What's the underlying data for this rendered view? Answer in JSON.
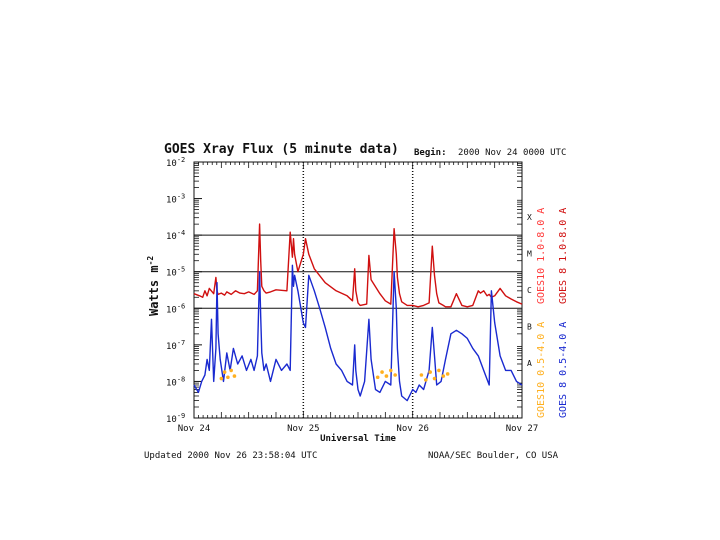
{
  "chart_data": {
    "type": "line",
    "title": "GOES Xray Flux (5 minute data)",
    "begin_label": "Begin:",
    "begin_value": "2000 Nov 24 0000 UTC",
    "ylabel": "Watts m",
    "ylabel_exp": "-2",
    "xlabel": "Universal Time",
    "y_scale": "log",
    "ylim": [
      1e-09,
      0.01
    ],
    "xlim": [
      0,
      3
    ],
    "y_ticks": [
      {
        "base": "10",
        "exp": "-2",
        "value": 0.01
      },
      {
        "base": "10",
        "exp": "-3",
        "value": 0.001
      },
      {
        "base": "10",
        "exp": "-4",
        "value": 0.0001
      },
      {
        "base": "10",
        "exp": "-5",
        "value": 1e-05
      },
      {
        "base": "10",
        "exp": "-6",
        "value": 1e-06
      },
      {
        "base": "10",
        "exp": "-7",
        "value": 1e-07
      },
      {
        "base": "10",
        "exp": "-8",
        "value": 1e-08
      },
      {
        "base": "10",
        "exp": "-9",
        "value": 1e-09
      }
    ],
    "x_ticks": [
      {
        "label": "Nov 24",
        "value": 0
      },
      {
        "label": "Nov 25",
        "value": 1
      },
      {
        "label": "Nov 26",
        "value": 2
      },
      {
        "label": "Nov 27",
        "value": 3
      }
    ],
    "flare_classes": [
      {
        "label": "X",
        "value": 0.0001
      },
      {
        "label": "M",
        "value": 1e-05
      },
      {
        "label": "C",
        "value": 1e-06
      },
      {
        "label": "B",
        "value": 1e-07
      },
      {
        "label": "A",
        "value": 1e-08
      }
    ],
    "reference_lines": [
      0.0001,
      1e-05,
      1e-06
    ],
    "legend": [
      {
        "name": "GOES10 1.0-8.0 A",
        "color": "#ff3b3b"
      },
      {
        "name": "GOES 8 1.0-8.0 A",
        "color": "#d01010"
      },
      {
        "name": "GOES10 0.5-4.0 A",
        "color": "#ffb020"
      },
      {
        "name": "GOES 8 0.5-4.0 A",
        "color": "#1a2ad0"
      }
    ],
    "series": [
      {
        "name": "GOES 8 1.0-8.0 A",
        "color": "#d01010",
        "x": [
          0,
          0.05,
          0.08,
          0.1,
          0.12,
          0.14,
          0.18,
          0.2,
          0.21,
          0.22,
          0.25,
          0.28,
          0.3,
          0.34,
          0.38,
          0.42,
          0.46,
          0.5,
          0.55,
          0.58,
          0.6,
          0.61,
          0.62,
          0.64,
          0.66,
          0.7,
          0.75,
          0.85,
          0.88,
          0.9,
          0.91,
          0.92,
          0.95,
          1.0,
          1.02,
          1.05,
          1.1,
          1.2,
          1.3,
          1.4,
          1.45,
          1.47,
          1.48,
          1.5,
          1.52,
          1.58,
          1.6,
          1.62,
          1.7,
          1.75,
          1.8,
          1.83,
          1.85,
          1.86,
          1.88,
          1.9,
          1.95,
          2.0,
          2.05,
          2.1,
          2.15,
          2.18,
          2.2,
          2.22,
          2.24,
          2.28,
          2.3,
          2.35,
          2.4,
          2.45,
          2.5,
          2.55,
          2.6,
          2.62,
          2.65,
          2.68,
          2.7,
          2.72,
          2.75,
          2.8,
          2.85,
          2.9,
          2.95,
          3.0
        ],
        "y": [
          2.5e-06,
          2.2e-06,
          2e-06,
          3e-06,
          2.2e-06,
          3.5e-06,
          2.5e-06,
          7e-06,
          3e-06,
          2.4e-06,
          2.6e-06,
          2.3e-06,
          2.8e-06,
          2.4e-06,
          3e-06,
          2.6e-06,
          2.5e-06,
          2.8e-06,
          2.4e-06,
          3e-06,
          0.0002,
          2e-05,
          4e-06,
          3e-06,
          2.6e-06,
          2.8e-06,
          3.2e-06,
          3e-06,
          0.00012,
          2.5e-05,
          8e-05,
          3e-05,
          1e-05,
          3e-05,
          8e-05,
          3e-05,
          1.2e-05,
          5e-06,
          3e-06,
          2.2e-06,
          1.6e-06,
          1.2e-05,
          3e-06,
          1.4e-06,
          1.2e-06,
          1.3e-06,
          2.8e-05,
          6e-06,
          2.5e-06,
          1.6e-06,
          1.3e-06,
          0.00015,
          3e-05,
          7e-06,
          2.5e-06,
          1.5e-06,
          1.2e-06,
          1.2e-06,
          1.1e-06,
          1.2e-06,
          1.4e-06,
          5e-05,
          8e-06,
          2.5e-06,
          1.4e-06,
          1.2e-06,
          1.1e-06,
          1.1e-06,
          2.5e-06,
          1.2e-06,
          1.1e-06,
          1.2e-06,
          3e-06,
          2.6e-06,
          3e-06,
          2.2e-06,
          2.4e-06,
          2e-06,
          2.2e-06,
          3.5e-06,
          2.2e-06,
          1.8e-06,
          1.5e-06,
          1.3e-06
        ]
      },
      {
        "name": "GOES 8 0.5-4.0 A",
        "color": "#1a2ad0",
        "x": [
          0,
          0.04,
          0.07,
          0.1,
          0.12,
          0.14,
          0.16,
          0.18,
          0.2,
          0.21,
          0.22,
          0.24,
          0.27,
          0.3,
          0.33,
          0.36,
          0.4,
          0.44,
          0.48,
          0.52,
          0.55,
          0.58,
          0.6,
          0.61,
          0.62,
          0.64,
          0.66,
          0.7,
          0.75,
          0.8,
          0.85,
          0.88,
          0.9,
          0.91,
          0.92,
          0.95,
          1.0,
          1.02,
          1.05,
          1.1,
          1.15,
          1.2,
          1.25,
          1.3,
          1.35,
          1.4,
          1.45,
          1.47,
          1.48,
          1.5,
          1.52,
          1.56,
          1.6,
          1.62,
          1.66,
          1.7,
          1.75,
          1.8,
          1.83,
          1.85,
          1.86,
          1.88,
          1.9,
          1.95,
          2.0,
          2.03,
          2.06,
          2.1,
          2.15,
          2.18,
          2.2,
          2.22,
          2.26,
          2.3,
          2.35,
          2.4,
          2.45,
          2.5,
          2.55,
          2.6,
          2.65,
          2.7,
          2.72,
          2.75,
          2.8,
          2.85,
          2.9,
          2.95,
          3.0
        ],
        "y": [
          8e-09,
          5e-09,
          1e-08,
          1.5e-08,
          4e-08,
          2e-08,
          5e-07,
          1e-08,
          8e-08,
          5e-06,
          2e-07,
          4e-08,
          1e-08,
          6e-08,
          2e-08,
          8e-08,
          3e-08,
          5e-08,
          2e-08,
          4e-08,
          2e-08,
          5e-08,
          1e-05,
          6e-07,
          6e-08,
          2e-08,
          3e-08,
          1e-08,
          4e-08,
          2e-08,
          3e-08,
          2e-08,
          1.5e-05,
          4e-06,
          8e-06,
          3e-06,
          4e-07,
          3e-07,
          8e-06,
          3e-06,
          1e-06,
          3e-07,
          8e-08,
          3e-08,
          2e-08,
          1e-08,
          8e-09,
          1e-07,
          2e-08,
          6e-09,
          4e-09,
          1e-08,
          5e-07,
          4e-08,
          6e-09,
          5e-09,
          1e-08,
          8e-09,
          1e-05,
          1e-06,
          8e-08,
          1e-08,
          4e-09,
          3e-09,
          6e-09,
          5e-09,
          8e-09,
          6e-09,
          2e-08,
          3e-07,
          5e-08,
          8e-09,
          1e-08,
          4e-08,
          2e-07,
          2.5e-07,
          2e-07,
          1.5e-07,
          8e-08,
          5e-08,
          2e-08,
          8e-09,
          3e-06,
          4e-07,
          5e-08,
          2e-08,
          2e-08,
          1e-08,
          8e-09
        ]
      },
      {
        "name": "GOES10 0.5-4.0 A",
        "color": "#ffb020",
        "x": [
          0.25,
          0.28,
          0.31,
          0.34,
          0.37,
          1.68,
          1.72,
          1.76,
          1.8,
          1.84,
          2.08,
          2.12,
          2.16,
          2.2,
          2.24,
          2.28,
          2.32
        ],
        "y": [
          1.2e-08,
          1.8e-08,
          1.3e-08,
          2e-08,
          1.4e-08,
          1.3e-08,
          1.8e-08,
          1.4e-08,
          2e-08,
          1.5e-08,
          1.5e-08,
          1.1e-08,
          1.8e-08,
          1.2e-08,
          2e-08,
          1.4e-08,
          1.6e-08
        ]
      }
    ]
  },
  "footer": {
    "updated": "Updated 2000 Nov 26 23:58:04 UTC",
    "credit": "NOAA/SEC Boulder, CO USA"
  }
}
